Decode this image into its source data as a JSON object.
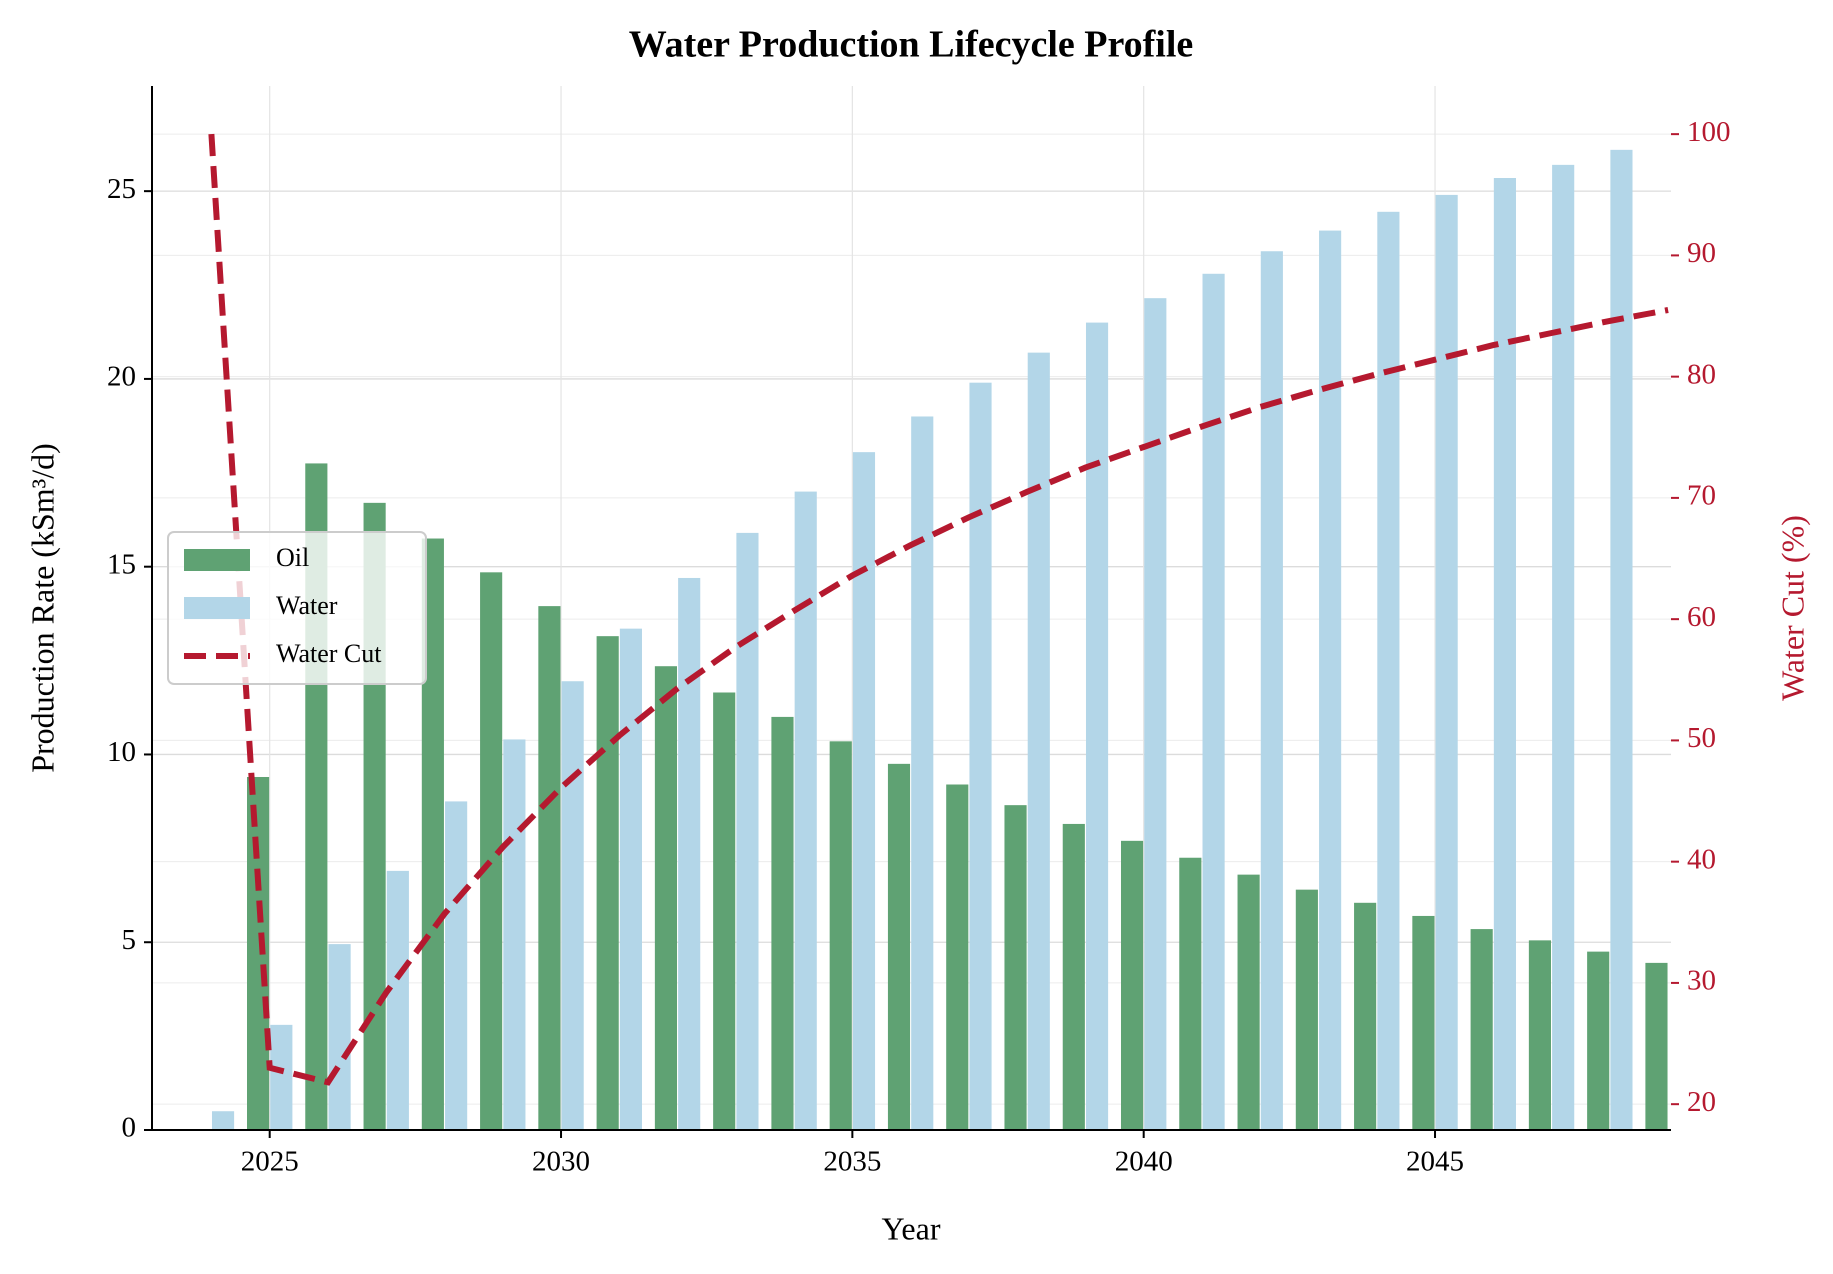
{
  "chart_data": {
    "type": "bar-line",
    "title": "Water Production Lifecycle Profile",
    "x_label": "Year",
    "y_label": "Production Rate (kSm³/d)",
    "y2_label": "Water Cut (%)",
    "x": [
      2024,
      2025,
      2026,
      2027,
      2028,
      2029,
      2030,
      2031,
      2032,
      2033,
      2034,
      2035,
      2036,
      2037,
      2038,
      2039,
      2040,
      2041,
      2042,
      2043,
      2044,
      2045,
      2046,
      2047,
      2048,
      2049
    ],
    "series": [
      {
        "name": "Oil",
        "type": "bar",
        "color": "#5fa273",
        "values": [
          0,
          9.4,
          17.75,
          16.7,
          15.75,
          14.85,
          13.95,
          13.15,
          12.35,
          11.65,
          11.0,
          10.35,
          9.75,
          9.2,
          8.65,
          8.15,
          7.7,
          7.25,
          6.8,
          6.4,
          6.05,
          5.7,
          5.35,
          5.05,
          4.75,
          4.45
        ]
      },
      {
        "name": "Water",
        "type": "bar",
        "color": "#b3d6e8",
        "values": [
          0.5,
          2.8,
          4.95,
          6.9,
          8.75,
          10.4,
          11.95,
          13.35,
          14.7,
          15.9,
          17.0,
          18.05,
          19.0,
          19.9,
          20.7,
          21.5,
          22.15,
          22.8,
          23.4,
          23.95,
          24.45,
          24.9,
          25.35,
          25.7,
          26.1,
          null
        ]
      },
      {
        "name": "Water Cut",
        "type": "line",
        "axis": "y2",
        "color": "#b5192f",
        "dashed": true,
        "values": [
          100,
          23.0,
          21.8,
          29.2,
          35.7,
          41.2,
          46.1,
          50.4,
          54.3,
          57.7,
          60.7,
          63.6,
          66.1,
          68.4,
          70.5,
          72.5,
          74.2,
          75.9,
          77.5,
          78.9,
          80.2,
          81.4,
          82.6,
          83.6,
          84.6,
          85.5
        ]
      }
    ],
    "xlim": [
      2022.98,
      2049.05
    ],
    "xticks": [
      2025,
      2030,
      2035,
      2040,
      2045
    ],
    "ylim": [
      0,
      27.8
    ],
    "yticks": [
      0,
      5,
      10,
      15,
      20,
      25
    ],
    "y2lim": [
      17.87,
      103.97
    ],
    "y2ticks": [
      20,
      30,
      40,
      50,
      60,
      70,
      80,
      90,
      100
    ],
    "y2_color": "#b5192f",
    "grid": true,
    "legend": "center left"
  }
}
